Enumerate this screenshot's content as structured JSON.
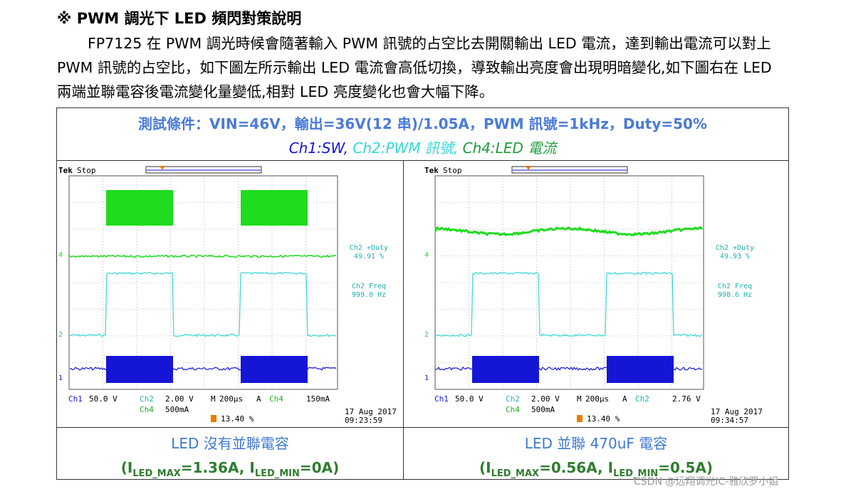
{
  "heading": "※ PWM 調光下 LED 頻閃對策說明",
  "paragraph": "FP7125 在 PWM 調光時候會隨著輸入 PWM 訊號的占空比去開關輸出 LED 電流，達到輸出電流可以對上 PWM 訊號的占空比，如下圖左所示輸出 LED 電流會高低切換，導致輸出亮度會出現明暗變化,如下圖右在 LED 兩端並聯電容後電流變化量變低,相對 LED 亮度變化也會大幅下降。",
  "test_condition": "測試條件：VIN=46V，輸出=36V(12 串)/1.05A，PWM 訊號=1kHz，Duty=50%",
  "channels": {
    "ch1": "Ch1:SW,",
    "ch2": "Ch2:PWM 訊號,",
    "ch4": "Ch4:LED 電流"
  },
  "colors": {
    "ch1": "#1515d6",
    "ch2": "#33d6d6",
    "ch4": "#1fdc1f",
    "condition": "#4a7bd8",
    "caption": "#3d7ad1",
    "subcaption": "#2f7d2f",
    "trigger": "#e87d00"
  },
  "scopes": [
    {
      "brand": "Tek",
      "status": "Stop",
      "meas1_label": "Ch2 +Duty",
      "meas1_value": "49.91 %",
      "meas2_label": "Ch2 Freq",
      "meas2_value": "999.0 Hz",
      "ch1_scale": "50.0 V",
      "ch2_scale": "2.00 V",
      "ch4_scale": "500mA",
      "timebase": "200µs",
      "trigger_source": "Ch4",
      "trigger_level": "150mA",
      "trigger_pos": "13.40 %",
      "date": "17 Aug 2017",
      "time": "09:23:59",
      "caption": "LED 沒有並聯電容",
      "imax": "1.36A",
      "imin": "0A",
      "led_current_mode": "switching"
    },
    {
      "brand": "Tek",
      "status": "Stop",
      "meas1_label": "Ch2 +Duty",
      "meas1_value": "49.93 %",
      "meas2_label": "Ch2 Freq",
      "meas2_value": "998.6 Hz",
      "ch1_scale": "50.0 V",
      "ch2_scale": "2.00 V",
      "ch4_scale": "500mA",
      "timebase": "200µs",
      "trigger_source": "Ch2",
      "trigger_level": "2.76 V",
      "trigger_pos": "13.40 %",
      "date": "17 Aug 2017",
      "time": "09:34:57",
      "caption": "LED 並聯 470uF 電容",
      "imax": "0.56A",
      "imin": "0.5A",
      "led_current_mode": "ripple"
    }
  ],
  "sub_labels": {
    "i": "I",
    "max": "LED_MAX",
    "min": "LED_MIN",
    "eq": "=",
    "open": "(",
    "sep": ", ",
    "close": ")"
  },
  "watermark": "CSDN @远翔调光IC-雅欣罗小姐"
}
